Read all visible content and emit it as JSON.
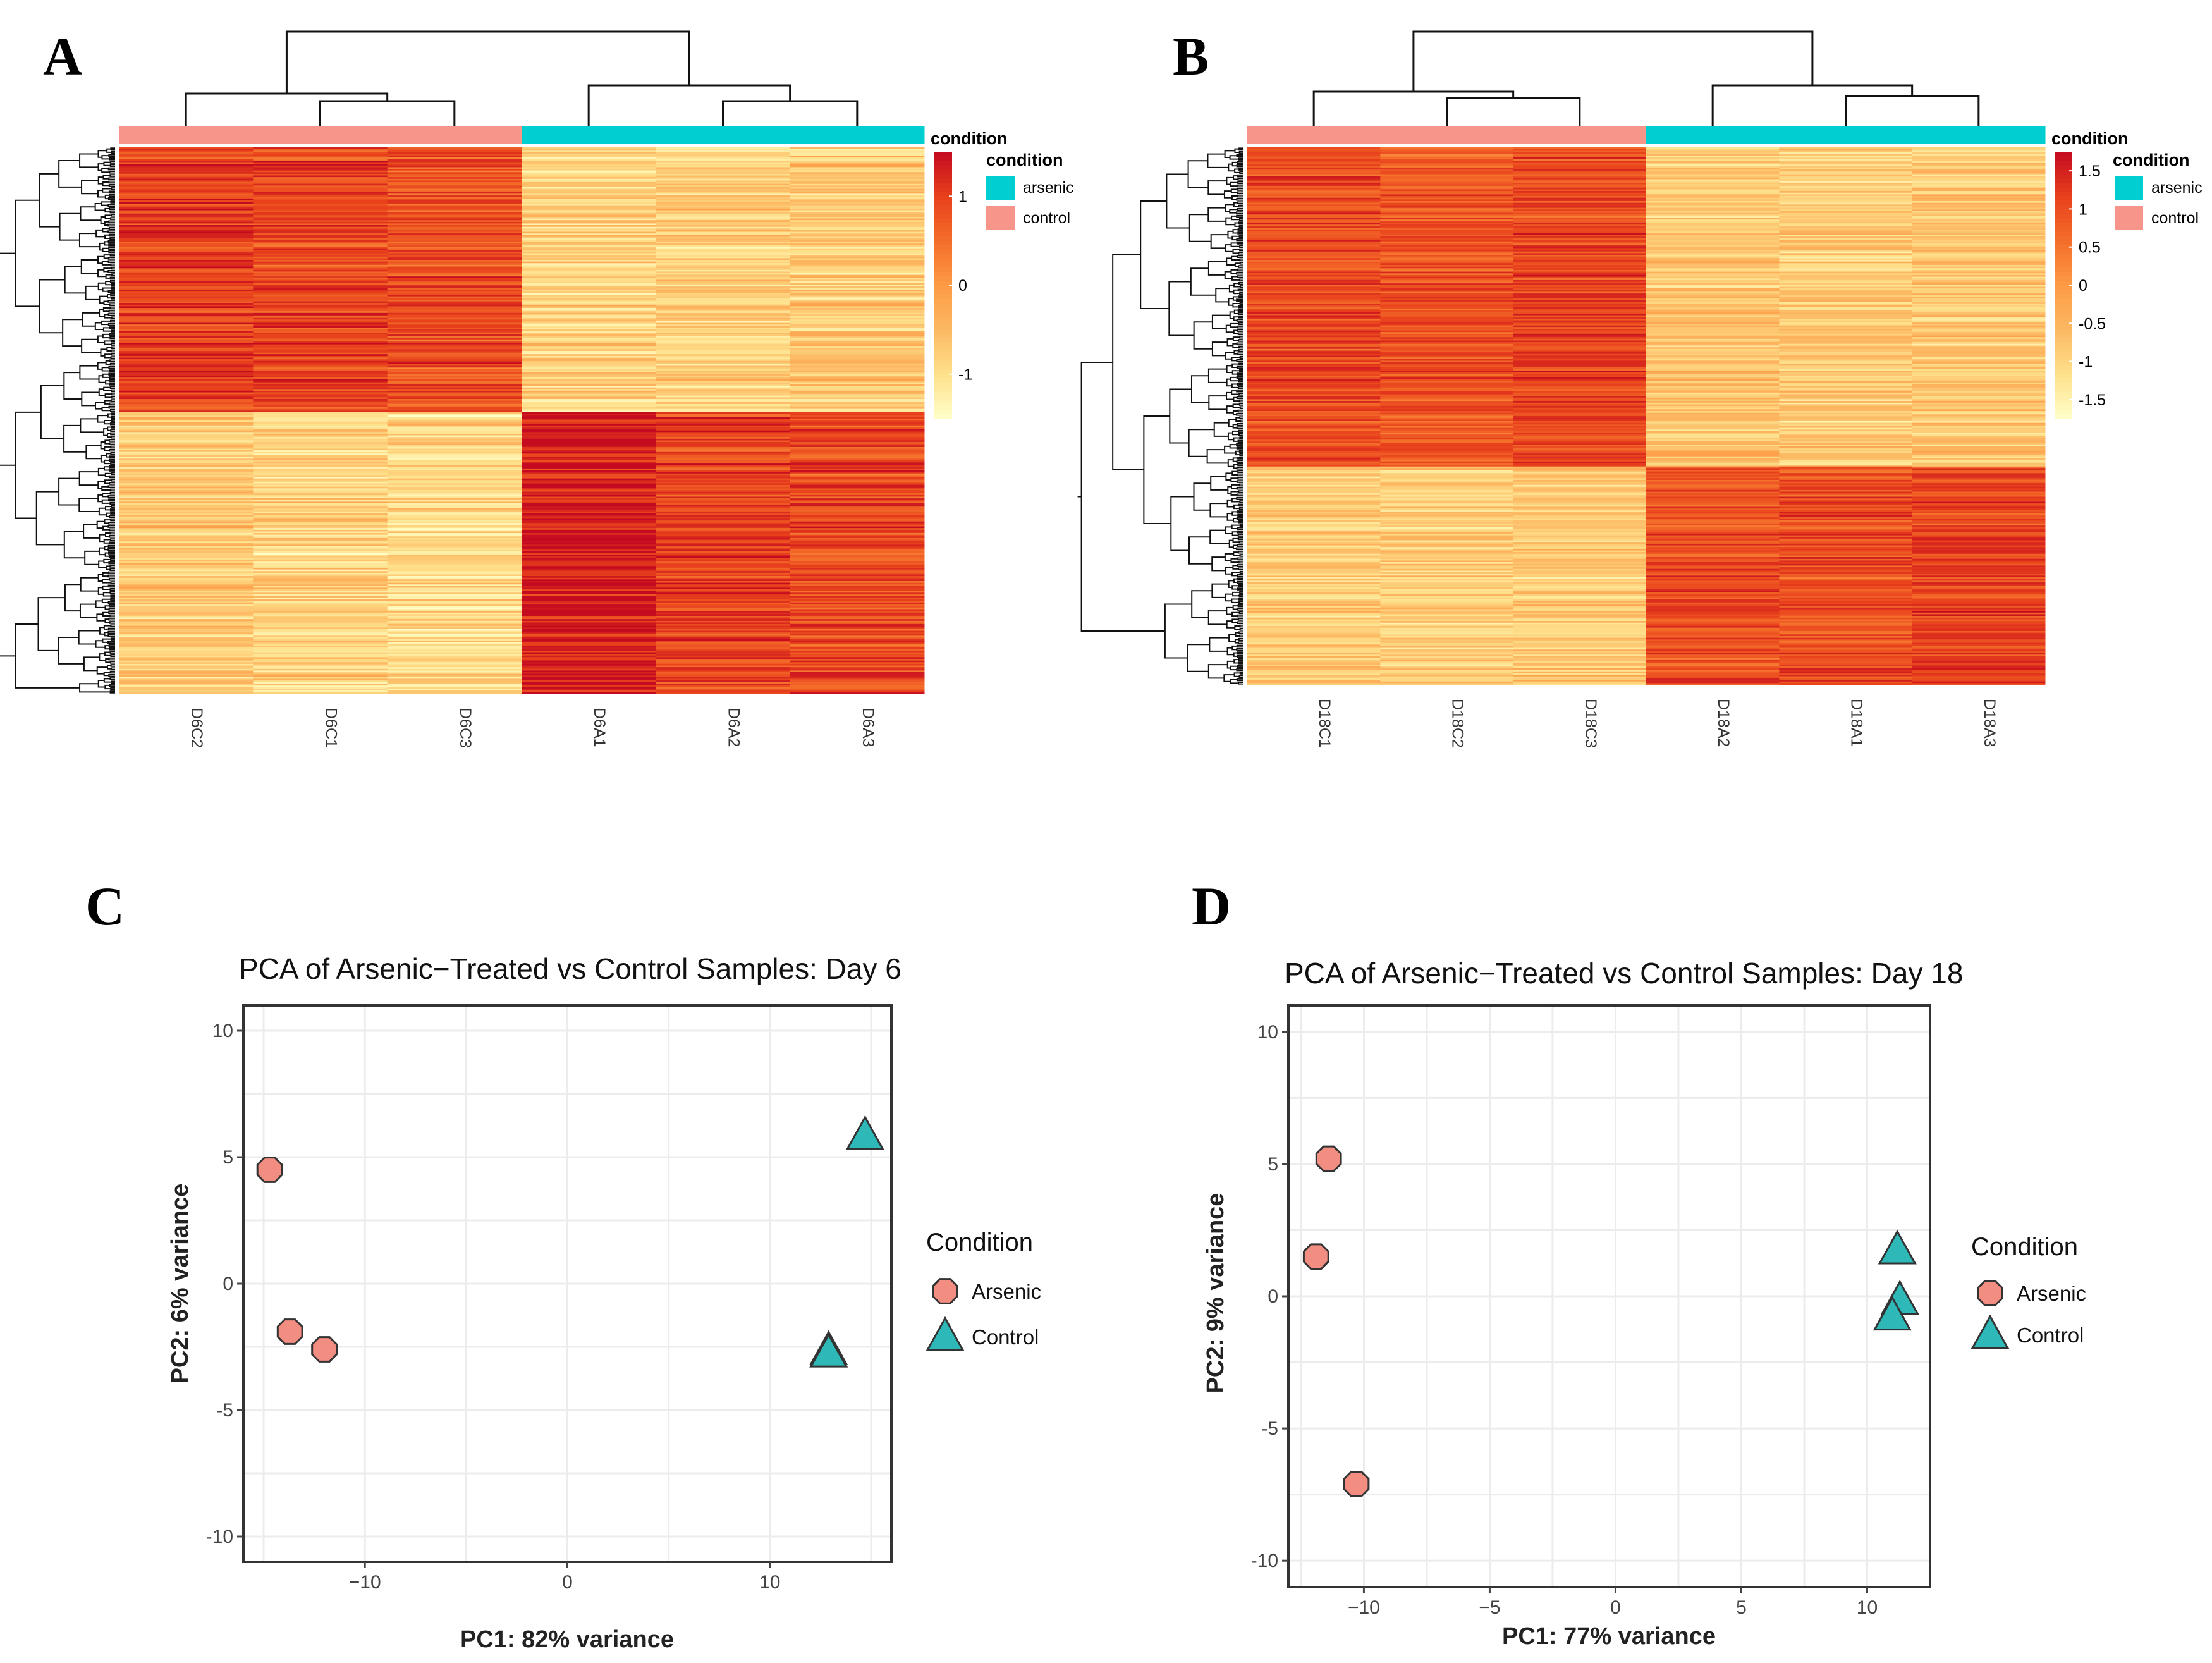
{
  "panels": {
    "A": "A",
    "B": "B",
    "C": "C",
    "D": "D"
  },
  "colors": {
    "arsenic_bar": "#00CED1",
    "control_bar": "#F8958A",
    "arsenic_point": "#F28D81",
    "control_point": "#2EB8B8",
    "heat_scale": [
      "#FFFFC8",
      "#FEE08B",
      "#FDB863",
      "#FD9A44",
      "#F46D2A",
      "#E8401C",
      "#C40A20"
    ]
  },
  "chart_data": [
    {
      "type": "heatmap",
      "panel": "A",
      "columns": [
        "D6C2",
        "D6C1",
        "D6C3",
        "D6A1",
        "D6A2",
        "D6A3"
      ],
      "column_groups": [
        "control",
        "control",
        "control",
        "arsenic",
        "arsenic",
        "arsenic"
      ],
      "annotation_title": "condition",
      "legend_title": "condition",
      "legend_entries": [
        {
          "label": "arsenic",
          "color": "#00CED1"
        },
        {
          "label": "control",
          "color": "#F8958A"
        }
      ],
      "color_scale": {
        "min": -1.5,
        "max": 1.5,
        "ticks": [
          "1",
          "0",
          "-1"
        ],
        "tick_values": [
          1,
          0,
          -1
        ]
      },
      "row_clusters": [
        {
          "rows": 160,
          "means": [
            1.05,
            0.95,
            0.85,
            -0.85,
            -0.75,
            -0.7
          ]
        },
        {
          "rows": 170,
          "means": [
            -0.7,
            -0.8,
            -0.9,
            1.35,
            0.95,
            0.9
          ]
        }
      ]
    },
    {
      "type": "heatmap",
      "panel": "B",
      "columns": [
        "D18C1",
        "D18C2",
        "D18C3",
        "D18A2",
        "D18A1",
        "D18A3"
      ],
      "column_groups": [
        "control",
        "control",
        "control",
        "arsenic",
        "arsenic",
        "arsenic"
      ],
      "annotation_title": "condition",
      "legend_title": "condition",
      "legend_entries": [
        {
          "label": "arsenic",
          "color": "#00CED1"
        },
        {
          "label": "control",
          "color": "#F8958A"
        }
      ],
      "color_scale": {
        "min": -1.75,
        "max": 1.75,
        "ticks": [
          "1.5",
          "1",
          "0.5",
          "0",
          "-0.5",
          "-1",
          "-1.5"
        ],
        "tick_values": [
          1.5,
          1,
          0.5,
          0,
          -0.5,
          -1,
          -1.5
        ]
      },
      "row_clusters": [
        {
          "rows": 190,
          "means": [
            1.0,
            0.9,
            1.05,
            -0.75,
            -0.85,
            -0.8
          ]
        },
        {
          "rows": 130,
          "means": [
            -0.85,
            -0.9,
            -0.8,
            1.0,
            1.0,
            1.1
          ]
        }
      ]
    },
    {
      "type": "scatter",
      "panel": "C",
      "title": "PCA of Arsenic−Treated vs Control Samples: Day 6",
      "xlabel": "PC1: 82% variance",
      "ylabel": "PC2: 6% variance",
      "xlim": [
        -16,
        16
      ],
      "ylim": [
        -11,
        11
      ],
      "xticks": [
        -10,
        0,
        10
      ],
      "yticks": [
        10,
        5,
        0,
        -5,
        -10
      ],
      "xtick_labels": [
        "−10",
        "0",
        "10"
      ],
      "ytick_labels": [
        "10",
        "5",
        "0",
        "-5",
        "-10"
      ],
      "legend_title": "Condition",
      "series": [
        {
          "name": "Arsenic",
          "shape": "circle",
          "x": [
            -14.7,
            -13.7,
            -12.0
          ],
          "y": [
            4.5,
            -1.9,
            -2.6
          ]
        },
        {
          "name": "Control",
          "shape": "triangle",
          "x": [
            14.7,
            12.9,
            12.9
          ],
          "y": [
            5.8,
            -2.7,
            -2.8
          ]
        }
      ]
    },
    {
      "type": "scatter",
      "panel": "D",
      "title": "PCA of Arsenic−Treated vs Control Samples: Day 18",
      "xlabel": "PC1: 77% variance",
      "ylabel": "PC2: 9% variance",
      "xlim": [
        -13,
        12.5
      ],
      "ylim": [
        -11,
        11
      ],
      "xticks": [
        -10,
        -5,
        0,
        5,
        10
      ],
      "yticks": [
        10,
        5,
        0,
        -5,
        -10
      ],
      "xtick_labels": [
        "−10",
        "−5",
        "0",
        "5",
        "10"
      ],
      "ytick_labels": [
        "10",
        "5",
        "0",
        "-5",
        "-10"
      ],
      "legend_title": "Condition",
      "series": [
        {
          "name": "Arsenic",
          "shape": "circle",
          "x": [
            -11.4,
            -11.9,
            -10.3
          ],
          "y": [
            5.2,
            1.5,
            -7.1
          ]
        },
        {
          "name": "Control",
          "shape": "triangle",
          "x": [
            11.2,
            11.3,
            11.0
          ],
          "y": [
            1.7,
            -0.2,
            -0.8
          ]
        }
      ]
    }
  ]
}
